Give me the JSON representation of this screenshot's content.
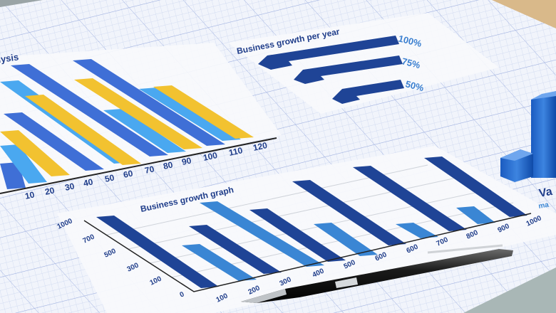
{
  "colors": {
    "paper": "#f4f6fb",
    "grid_minor": "#c9d4ee",
    "grid_major": "#9fb0e0",
    "dark_blue": "#1f4496",
    "mid_blue": "#3f6fd6",
    "light_blue": "#4aa8f0",
    "yellow": "#f2c230",
    "table": "#a9b7b6",
    "ruler": "#d9b98a"
  },
  "left_chart": {
    "title_fragment": "lysis",
    "x_ticks": [
      "10",
      "20",
      "30",
      "40",
      "50",
      "60",
      "70",
      "80",
      "90",
      "100",
      "110",
      "120"
    ]
  },
  "right_chart": {
    "title": "Business growth per year",
    "labels": [
      "100%",
      "75%",
      "50%"
    ]
  },
  "bottom_chart": {
    "title": "Business growth graph",
    "y_ticks": [
      "1000",
      "700",
      "500",
      "300",
      "100",
      "0"
    ],
    "x_ticks": [
      "100",
      "200",
      "300",
      "400",
      "500",
      "600",
      "600",
      "700",
      "800",
      "900",
      "1000"
    ]
  },
  "cube_chart": {
    "title_fragment": "Va",
    "subtitle_fragment": "ma"
  },
  "objects": {
    "pen": "pen-icon",
    "ruler": "ruler-icon"
  }
}
